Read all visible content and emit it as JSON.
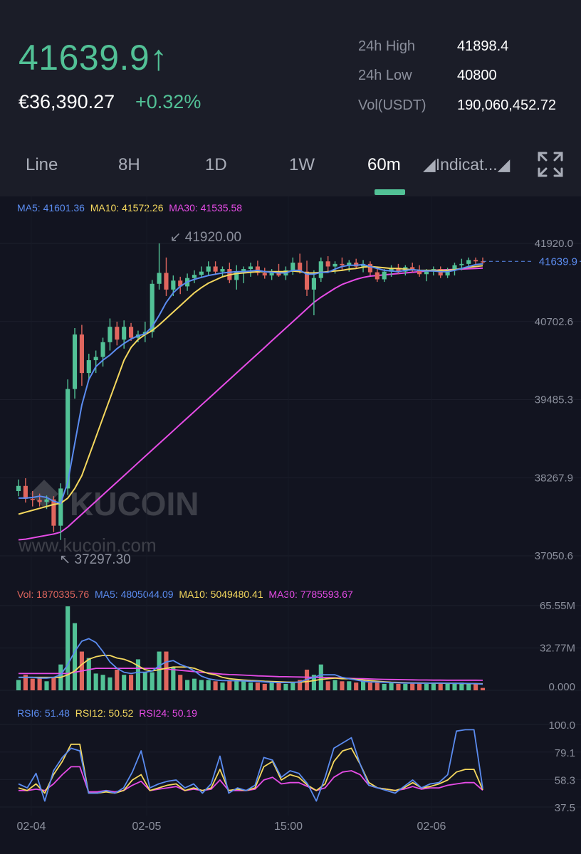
{
  "ticker": {
    "last_price": "41639.9",
    "arrow": "↑",
    "fiat_price": "€36,390.27",
    "change_pct": "+0.32%",
    "stats": [
      {
        "label": "24h High",
        "value": "41898.4"
      },
      {
        "label": "24h Low",
        "value": "40800"
      },
      {
        "label": "Vol(USDT)",
        "value": "190,060,452.72"
      }
    ]
  },
  "tabs": [
    {
      "label": "Line"
    },
    {
      "label": "8H"
    },
    {
      "label": "1D"
    },
    {
      "label": "1W"
    },
    {
      "label": "60m",
      "active": true
    },
    {
      "label": "◢Indicat...◢"
    }
  ],
  "colors": {
    "up": "#52c196",
    "down": "#e0665e",
    "ma5": "#5b8cf0",
    "ma10": "#f5d85e",
    "ma30": "#e64ce6",
    "bg": "#121420"
  },
  "legends": {
    "price": [
      {
        "text": "MA5: 41601.36",
        "color": "#5b8cf0"
      },
      {
        "text": "MA10: 41572.26",
        "color": "#f5d85e"
      },
      {
        "text": "MA30: 41535.58",
        "color": "#e64ce6"
      }
    ],
    "volume": [
      {
        "text": "Vol: 1870335.76",
        "color": "#e0665e"
      },
      {
        "text": "MA5: 4805044.09",
        "color": "#5b8cf0"
      },
      {
        "text": "MA10: 5049480.41",
        "color": "#f5d85e"
      },
      {
        "text": "MA30: 7785593.67",
        "color": "#e64ce6"
      }
    ],
    "rsi": [
      {
        "text": "RSI6: 51.48",
        "color": "#5b8cf0"
      },
      {
        "text": "RSI12: 50.52",
        "color": "#f5d85e"
      },
      {
        "text": "RSI24: 50.19",
        "color": "#e64ce6"
      }
    ]
  },
  "watermark": {
    "brand": "KUCOIN",
    "url": "www.kucoin.com"
  },
  "chart_data": {
    "type": "candlestick",
    "x_labels": [
      "02-04",
      "02-05",
      "15:00",
      "02-06"
    ],
    "price_axis": {
      "ticks": [
        "41920.0",
        "40702.6",
        "39485.3",
        "38267.9",
        "37050.6"
      ],
      "tick_values": [
        41920,
        40702.6,
        39485.3,
        38267.9,
        37050.6
      ]
    },
    "current_price": {
      "label": "41639.9",
      "value": 41639.9
    },
    "max_marker": {
      "label": "41920.00",
      "value": 41920
    },
    "min_marker": {
      "label": "37297.30",
      "value": 37297.3
    },
    "candles": [
      {
        "o": 38060,
        "h": 38240,
        "l": 37980,
        "c": 38140
      },
      {
        "o": 38140,
        "h": 38260,
        "l": 37880,
        "c": 37940
      },
      {
        "o": 37940,
        "h": 38060,
        "l": 37820,
        "c": 37920
      },
      {
        "o": 37920,
        "h": 38020,
        "l": 37820,
        "c": 37890
      },
      {
        "o": 37890,
        "h": 37990,
        "l": 37780,
        "c": 37930
      },
      {
        "o": 37930,
        "h": 37980,
        "l": 37420,
        "c": 37520
      },
      {
        "o": 37520,
        "h": 38180,
        "l": 37297.3,
        "c": 38100
      },
      {
        "o": 38100,
        "h": 39800,
        "l": 38000,
        "c": 39650
      },
      {
        "o": 39650,
        "h": 40600,
        "l": 39500,
        "c": 40500
      },
      {
        "o": 40500,
        "h": 40650,
        "l": 39700,
        "c": 39900
      },
      {
        "o": 39900,
        "h": 40200,
        "l": 39800,
        "c": 40100
      },
      {
        "o": 40100,
        "h": 40250,
        "l": 39900,
        "c": 40150
      },
      {
        "o": 40150,
        "h": 40450,
        "l": 40000,
        "c": 40380
      },
      {
        "o": 40380,
        "h": 40750,
        "l": 40250,
        "c": 40620
      },
      {
        "o": 40620,
        "h": 40700,
        "l": 40330,
        "c": 40420
      },
      {
        "o": 40420,
        "h": 40720,
        "l": 40280,
        "c": 40620
      },
      {
        "o": 40620,
        "h": 40680,
        "l": 40400,
        "c": 40450
      },
      {
        "o": 40450,
        "h": 40560,
        "l": 40380,
        "c": 40500
      },
      {
        "o": 40500,
        "h": 40700,
        "l": 40380,
        "c": 40540
      },
      {
        "o": 40540,
        "h": 41350,
        "l": 40450,
        "c": 41290
      },
      {
        "o": 41290,
        "h": 41920,
        "l": 41200,
        "c": 41460
      },
      {
        "o": 41460,
        "h": 41700,
        "l": 41100,
        "c": 41200
      },
      {
        "o": 41200,
        "h": 41420,
        "l": 41100,
        "c": 41340
      },
      {
        "o": 41340,
        "h": 41400,
        "l": 41130,
        "c": 41250
      },
      {
        "o": 41250,
        "h": 41450,
        "l": 41180,
        "c": 41380
      },
      {
        "o": 41380,
        "h": 41500,
        "l": 41300,
        "c": 41430
      },
      {
        "o": 41430,
        "h": 41560,
        "l": 41380,
        "c": 41480
      },
      {
        "o": 41480,
        "h": 41640,
        "l": 41420,
        "c": 41560
      },
      {
        "o": 41560,
        "h": 41640,
        "l": 41430,
        "c": 41480
      },
      {
        "o": 41480,
        "h": 41560,
        "l": 41400,
        "c": 41520
      },
      {
        "o": 41520,
        "h": 41620,
        "l": 41300,
        "c": 41350
      },
      {
        "o": 41350,
        "h": 41580,
        "l": 41200,
        "c": 41480
      },
      {
        "o": 41480,
        "h": 41560,
        "l": 41300,
        "c": 41520
      },
      {
        "o": 41520,
        "h": 41620,
        "l": 41400,
        "c": 41560
      },
      {
        "o": 41560,
        "h": 41650,
        "l": 41420,
        "c": 41460
      },
      {
        "o": 41460,
        "h": 41540,
        "l": 41370,
        "c": 41420
      },
      {
        "o": 41420,
        "h": 41520,
        "l": 41350,
        "c": 41480
      },
      {
        "o": 41480,
        "h": 41600,
        "l": 41400,
        "c": 41420
      },
      {
        "o": 41420,
        "h": 41560,
        "l": 41350,
        "c": 41500
      },
      {
        "o": 41500,
        "h": 41700,
        "l": 41430,
        "c": 41620
      },
      {
        "o": 41620,
        "h": 41760,
        "l": 41450,
        "c": 41480
      },
      {
        "o": 41480,
        "h": 41650,
        "l": 41100,
        "c": 41200
      },
      {
        "o": 41200,
        "h": 41500,
        "l": 40800,
        "c": 41380
      },
      {
        "o": 41380,
        "h": 41700,
        "l": 41320,
        "c": 41640
      },
      {
        "o": 41640,
        "h": 41720,
        "l": 41480,
        "c": 41560
      },
      {
        "o": 41560,
        "h": 41640,
        "l": 41450,
        "c": 41600
      },
      {
        "o": 41600,
        "h": 41700,
        "l": 41500,
        "c": 41580
      },
      {
        "o": 41580,
        "h": 41660,
        "l": 41480,
        "c": 41620
      },
      {
        "o": 41620,
        "h": 41680,
        "l": 41520,
        "c": 41560
      },
      {
        "o": 41560,
        "h": 41660,
        "l": 41470,
        "c": 41600
      },
      {
        "o": 41600,
        "h": 41640,
        "l": 41420,
        "c": 41470
      },
      {
        "o": 41470,
        "h": 41560,
        "l": 41320,
        "c": 41360
      },
      {
        "o": 41360,
        "h": 41520,
        "l": 41320,
        "c": 41480
      },
      {
        "o": 41480,
        "h": 41580,
        "l": 41400,
        "c": 41540
      },
      {
        "o": 41540,
        "h": 41600,
        "l": 41440,
        "c": 41480
      },
      {
        "o": 41480,
        "h": 41580,
        "l": 41420,
        "c": 41550
      },
      {
        "o": 41550,
        "h": 41620,
        "l": 41470,
        "c": 41500
      },
      {
        "o": 41500,
        "h": 41580,
        "l": 41400,
        "c": 41440
      },
      {
        "o": 41440,
        "h": 41520,
        "l": 41330,
        "c": 41480
      },
      {
        "o": 41480,
        "h": 41560,
        "l": 41420,
        "c": 41520
      },
      {
        "o": 41520,
        "h": 41560,
        "l": 41380,
        "c": 41420
      },
      {
        "o": 41420,
        "h": 41540,
        "l": 41380,
        "c": 41500
      },
      {
        "o": 41500,
        "h": 41620,
        "l": 41420,
        "c": 41580
      },
      {
        "o": 41580,
        "h": 41680,
        "l": 41500,
        "c": 41600
      },
      {
        "o": 41600,
        "h": 41700,
        "l": 41540,
        "c": 41660
      },
      {
        "o": 41660,
        "h": 41700,
        "l": 41580,
        "c": 41640
      },
      {
        "o": 41640,
        "h": 41700,
        "l": 41590,
        "c": 41639.9
      }
    ],
    "ma_price": {
      "ma5": [
        37950,
        37950,
        37960,
        37980,
        37960,
        37900,
        37870,
        38200,
        38800,
        39400,
        39800,
        40000,
        40100,
        40180,
        40280,
        40360,
        40430,
        40480,
        40510,
        40620,
        40800,
        41000,
        41150,
        41250,
        41320,
        41360,
        41390,
        41420,
        41440,
        41460,
        41470,
        41480,
        41480,
        41490,
        41500,
        41480,
        41470,
        41460,
        41460,
        41500,
        41500,
        41440,
        41440,
        41470,
        41470,
        41520,
        41560,
        41580,
        41580,
        41590,
        41560,
        41530,
        41500,
        41490,
        41480,
        41500,
        41510,
        41500,
        41490,
        41490,
        41480,
        41480,
        41500,
        41530,
        41560,
        41590,
        41601.36
      ],
      "ma10": [
        37700,
        37730,
        37760,
        37790,
        37820,
        37850,
        37870,
        37950,
        38100,
        38300,
        38600,
        38900,
        39200,
        39500,
        39800,
        40100,
        40300,
        40420,
        40500,
        40560,
        40650,
        40750,
        40850,
        40950,
        41050,
        41150,
        41230,
        41300,
        41350,
        41400,
        41430,
        41450,
        41460,
        41470,
        41480,
        41480,
        41480,
        41480,
        41480,
        41490,
        41480,
        41460,
        41460,
        41470,
        41480,
        41490,
        41500,
        41520,
        41530,
        41550,
        41560,
        41550,
        41540,
        41530,
        41530,
        41520,
        41510,
        41500,
        41500,
        41500,
        41500,
        41500,
        41510,
        41530,
        41550,
        41560,
        41572.26
      ],
      "ma30": [
        37300,
        37310,
        37330,
        37350,
        37370,
        37390,
        37420,
        37500,
        37600,
        37700,
        37800,
        37900,
        38000,
        38100,
        38200,
        38300,
        38400,
        38500,
        38600,
        38700,
        38800,
        38900,
        39000,
        39100,
        39200,
        39300,
        39400,
        39500,
        39600,
        39700,
        39800,
        39900,
        40000,
        40100,
        40200,
        40300,
        40400,
        40500,
        40600,
        40700,
        40800,
        40900,
        41000,
        41080,
        41150,
        41220,
        41280,
        41320,
        41360,
        41390,
        41410,
        41420,
        41430,
        41440,
        41450,
        41460,
        41470,
        41480,
        41490,
        41500,
        41505,
        41510,
        41515,
        41520,
        41525,
        41530,
        41535.58
      ]
    },
    "volume": {
      "axis_ticks": [
        "65.55M",
        "32.77M",
        "0.000"
      ],
      "axis_max_m": 65.55,
      "values_m": [
        8,
        12,
        9,
        10,
        7,
        10,
        20,
        65,
        52,
        30,
        25,
        13,
        12,
        10,
        16,
        12,
        12,
        24,
        14,
        14,
        30,
        30,
        18,
        12,
        8,
        9,
        8,
        8,
        7,
        6,
        8,
        8,
        7,
        6,
        6,
        5,
        6,
        6,
        5,
        6,
        8,
        16,
        12,
        20,
        7,
        8,
        7,
        7,
        6,
        7,
        6,
        6,
        5,
        6,
        5,
        5,
        6,
        6,
        5,
        6,
        6,
        5,
        5,
        6,
        5,
        5,
        1.87
      ],
      "ma5_m": [
        10,
        10,
        10,
        9.5,
        9.5,
        10,
        12,
        20,
        30,
        38,
        40,
        37,
        30,
        22,
        17,
        14,
        13,
        14,
        14,
        15,
        19,
        22,
        23,
        20,
        18,
        15,
        11,
        9,
        8,
        7.5,
        7.5,
        7.4,
        7.3,
        7,
        7,
        6.5,
        6.2,
        6,
        6,
        6,
        6.5,
        8.5,
        10,
        12,
        12,
        12,
        10,
        9,
        8,
        7,
        6.5,
        6.4,
        6.2,
        6,
        5.8,
        5.6,
        5.6,
        5.5,
        5.5,
        5.6,
        5.6,
        5.5,
        5.4,
        5.4,
        5.3,
        5.2,
        4.81
      ],
      "ma10_m": [
        10,
        10,
        10,
        10,
        10,
        10,
        10,
        12,
        15,
        20,
        24,
        26,
        27,
        27,
        25,
        24,
        22,
        19,
        16,
        15,
        16,
        17,
        18,
        18,
        18,
        17,
        15,
        13,
        12,
        10,
        9,
        8.5,
        8,
        7.6,
        7.4,
        7,
        6.8,
        6.6,
        6.4,
        6.3,
        6.3,
        6.8,
        7.5,
        8.5,
        9,
        9.5,
        9,
        9,
        8.5,
        8,
        7.5,
        7,
        6.6,
        6.3,
        6.1,
        5.9,
        5.8,
        5.7,
        5.6,
        5.5,
        5.5,
        5.4,
        5.4,
        5.3,
        5.2,
        5.1,
        5.05
      ],
      "ma30_m": [
        13,
        13,
        13,
        13,
        13,
        13,
        13,
        13,
        14,
        15,
        16,
        17,
        17,
        17,
        17,
        17,
        17,
        17,
        17,
        17,
        17,
        16.5,
        16,
        15.5,
        15,
        14.5,
        14,
        13.5,
        13,
        12.5,
        12.2,
        12,
        11.8,
        11.5,
        11.2,
        11,
        10.8,
        10.6,
        10.5,
        10.4,
        10.3,
        10.2,
        10,
        10,
        9.9,
        9.7,
        9.5,
        9.3,
        9.1,
        9,
        8.8,
        8.6,
        8.5,
        8.4,
        8.3,
        8.2,
        8.1,
        8,
        8,
        7.9,
        7.9,
        7.8,
        7.8,
        7.8,
        7.8,
        7.8,
        7.79
      ]
    },
    "rsi": {
      "axis_ticks": [
        "100.0",
        "79.1",
        "58.3",
        "37.5"
      ],
      "tick_values": [
        100,
        79.1,
        58.3,
        37.5
      ],
      "rsi6": [
        55,
        52,
        63,
        42,
        65,
        75,
        82,
        80,
        48,
        48,
        50,
        48,
        52,
        64,
        80,
        52,
        55,
        57,
        58,
        52,
        55,
        48,
        55,
        76,
        48,
        52,
        50,
        54,
        75,
        73,
        60,
        65,
        63,
        55,
        42,
        60,
        82,
        86,
        90,
        70,
        54,
        52,
        50,
        48,
        53,
        58,
        52,
        55,
        56,
        62,
        95,
        96,
        96,
        51.48
      ],
      "rsi12": [
        52,
        50,
        55,
        48,
        62,
        72,
        85,
        85,
        48,
        48,
        49,
        48,
        50,
        58,
        62,
        50,
        52,
        54,
        55,
        50,
        52,
        50,
        52,
        66,
        50,
        51,
        50,
        52,
        68,
        72,
        58,
        62,
        60,
        54,
        50,
        55,
        72,
        80,
        82,
        70,
        56,
        52,
        51,
        50,
        52,
        56,
        52,
        53,
        55,
        58,
        64,
        66,
        66,
        50.52
      ],
      "rsi24": [
        50,
        50,
        51,
        50,
        55,
        62,
        68,
        68,
        49,
        49,
        50,
        49,
        50,
        54,
        57,
        50,
        51,
        52,
        53,
        50,
        51,
        50,
        51,
        58,
        50,
        50,
        50,
        51,
        58,
        60,
        55,
        56,
        56,
        53,
        50,
        52,
        60,
        64,
        65,
        62,
        54,
        52,
        51,
        50,
        51,
        53,
        51,
        52,
        52,
        54,
        55,
        56,
        56,
        50.19
      ]
    }
  }
}
